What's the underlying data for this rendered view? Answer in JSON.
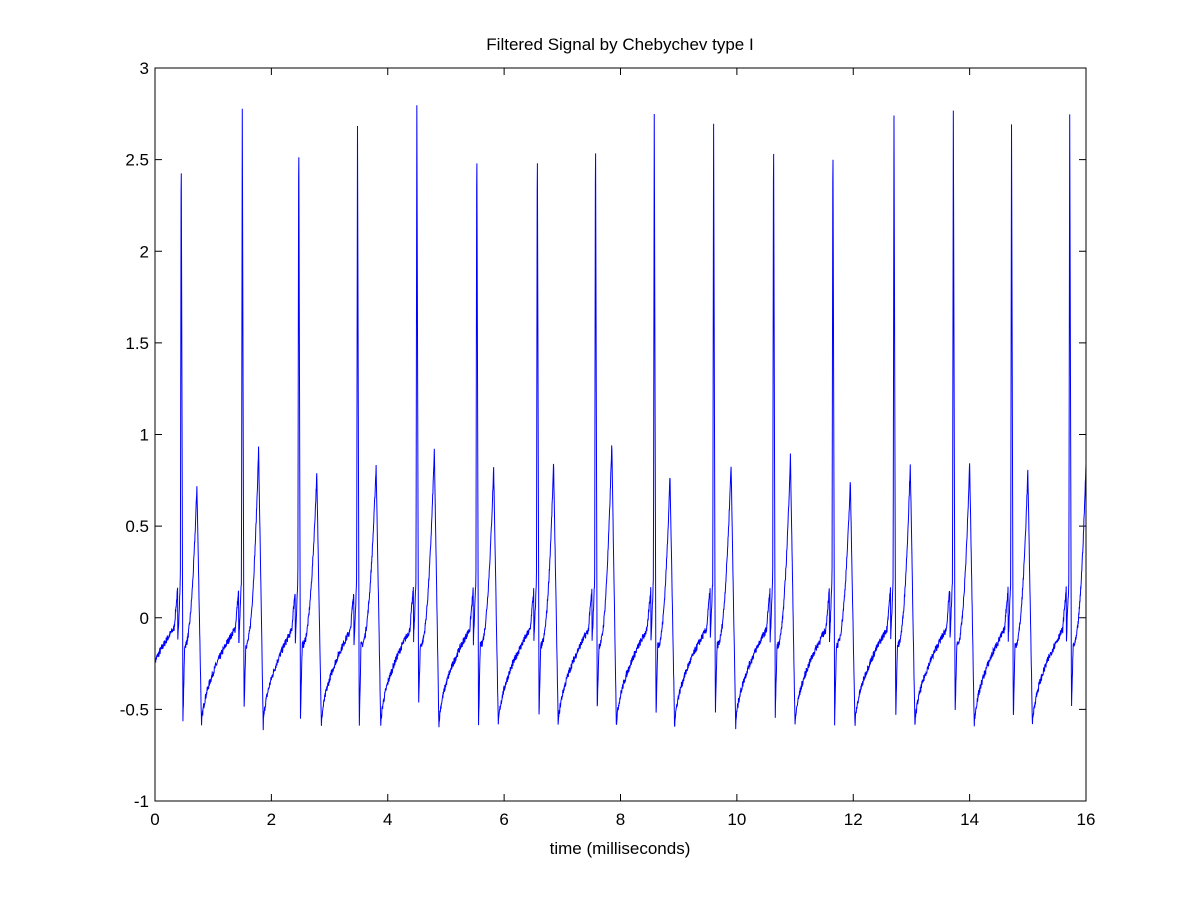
{
  "chart_data": {
    "type": "line",
    "title": "Filtered Signal by Chebychev type I",
    "xlabel": "time (milliseconds)",
    "ylabel": "",
    "xlim": [
      0,
      16
    ],
    "ylim": [
      -1,
      3
    ],
    "grid": false,
    "legend": "none",
    "x_ticks": [
      "0",
      "2",
      "4",
      "6",
      "8",
      "10",
      "12",
      "14",
      "16"
    ],
    "y_ticks": [
      "-1",
      "-0.5",
      "0",
      "0.5",
      "1",
      "1.5",
      "2",
      "2.5",
      "3"
    ],
    "colors": {
      "line": "#0000ff",
      "axes": "#000000",
      "background": "#ffffff"
    },
    "series": [
      {
        "beats": [
          {
            "t": 0.45,
            "peak": 2.65,
            "trough": -0.57,
            "wave_t": 0.72,
            "wave": 0.72
          },
          {
            "t": 1.5,
            "peak": 2.76,
            "trough": -0.5,
            "wave_t": 1.78,
            "wave": 0.92
          },
          {
            "t": 2.47,
            "peak": 2.75,
            "trough": -0.54,
            "wave_t": 2.78,
            "wave": 0.78
          },
          {
            "t": 3.48,
            "peak": 2.67,
            "trough": -0.6,
            "wave_t": 3.8,
            "wave": 0.83
          },
          {
            "t": 4.5,
            "peak": 2.79,
            "trough": -0.48,
            "wave_t": 4.8,
            "wave": 0.91
          },
          {
            "t": 5.53,
            "peak": 2.72,
            "trough": -0.59,
            "wave_t": 5.82,
            "wave": 0.82
          },
          {
            "t": 6.57,
            "peak": 2.68,
            "trough": -0.54,
            "wave_t": 6.85,
            "wave": 0.84
          },
          {
            "t": 7.57,
            "peak": 2.74,
            "trough": -0.5,
            "wave_t": 7.85,
            "wave": 0.95
          },
          {
            "t": 8.58,
            "peak": 2.74,
            "trough": -0.55,
            "wave_t": 8.85,
            "wave": 0.78
          },
          {
            "t": 9.6,
            "peak": 2.7,
            "trough": -0.54,
            "wave_t": 9.9,
            "wave": 0.84
          },
          {
            "t": 10.63,
            "peak": 2.75,
            "trough": -0.53,
            "wave_t": 10.92,
            "wave": 0.88
          },
          {
            "t": 11.65,
            "peak": 2.74,
            "trough": -0.58,
            "wave_t": 11.95,
            "wave": 0.74
          },
          {
            "t": 12.7,
            "peak": 2.75,
            "trough": -0.55,
            "wave_t": 12.98,
            "wave": 0.84
          },
          {
            "t": 13.72,
            "peak": 2.75,
            "trough": -0.53,
            "wave_t": 14.0,
            "wave": 0.84
          },
          {
            "t": 14.72,
            "peak": 2.7,
            "trough": -0.57,
            "wave_t": 15.0,
            "wave": 0.8
          },
          {
            "t": 15.72,
            "peak": 2.74,
            "trough": -0.5,
            "wave_t": 16.0,
            "wave": 0.84
          }
        ],
        "baseline_min": -0.6,
        "prewave": 0.2
      }
    ]
  }
}
